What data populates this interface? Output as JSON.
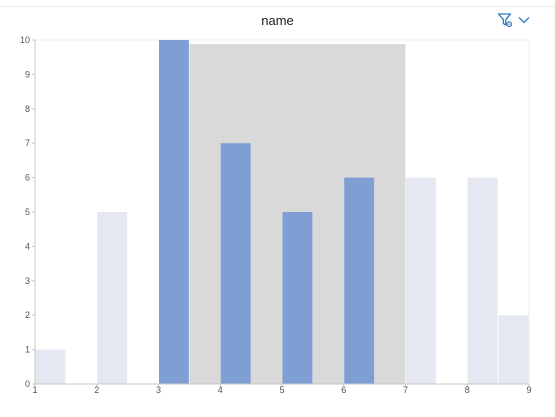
{
  "header": {
    "title": "name",
    "icons": [
      "filter-settings-icon",
      "chevron-down-icon"
    ]
  },
  "colors": {
    "bar_selected": "#7f9fd4",
    "bar_unselected": "#e5e8f0",
    "brush": "#d9d9d9",
    "accent": "#2f78c4"
  },
  "chart_data": {
    "type": "bar",
    "title": "name",
    "xlabel": "",
    "ylabel": "",
    "xlim": [
      1,
      9
    ],
    "ylim": [
      0,
      10
    ],
    "x_ticks": [
      "1",
      "2",
      "3",
      "4",
      "5",
      "6",
      "7",
      "8",
      "9"
    ],
    "y_ticks": [
      "0",
      "1",
      "2",
      "3",
      "4",
      "5",
      "6",
      "7",
      "8",
      "9",
      "10"
    ],
    "bars": [
      {
        "x0": 1.0,
        "x1": 1.5,
        "value": 1,
        "selected": false
      },
      {
        "x0": 2.0,
        "x1": 2.5,
        "value": 5,
        "selected": false
      },
      {
        "x0": 3.0,
        "x1": 3.5,
        "value": 10,
        "selected": true
      },
      {
        "x0": 4.0,
        "x1": 4.5,
        "value": 7,
        "selected": true
      },
      {
        "x0": 5.0,
        "x1": 5.5,
        "value": 5,
        "selected": true
      },
      {
        "x0": 6.0,
        "x1": 6.5,
        "value": 6,
        "selected": true
      },
      {
        "x0": 7.0,
        "x1": 7.5,
        "value": 6,
        "selected": false
      },
      {
        "x0": 8.0,
        "x1": 8.5,
        "value": 6,
        "selected": false
      },
      {
        "x0": 8.5,
        "x1": 9.0,
        "value": 2,
        "selected": false
      }
    ],
    "brush_range": [
      3.5,
      7.0
    ],
    "grid": false,
    "legend": "none"
  }
}
